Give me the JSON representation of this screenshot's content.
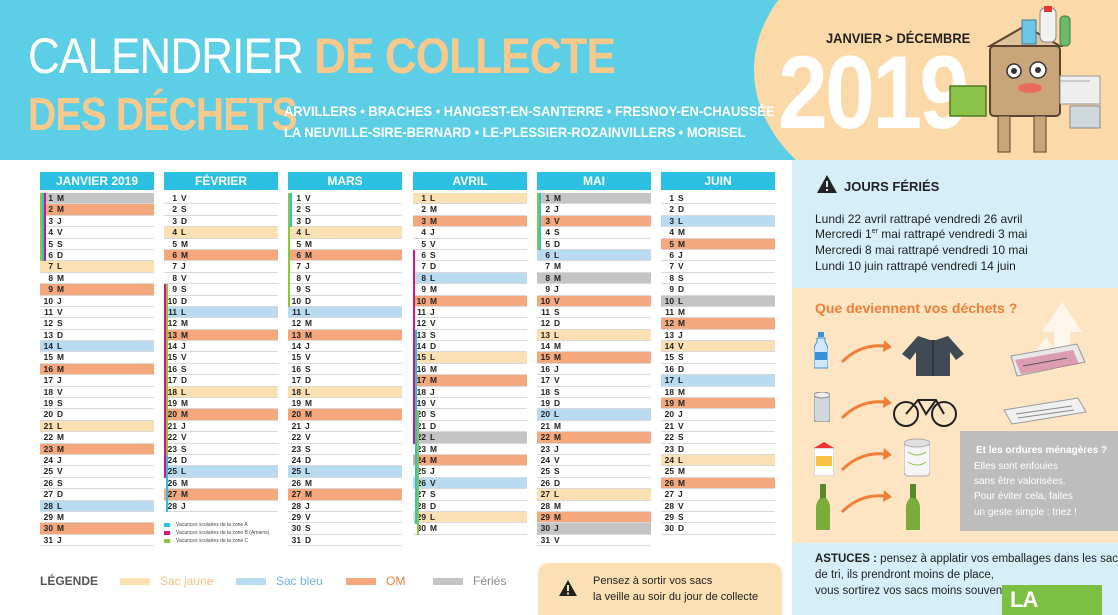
{
  "header": {
    "title_part1": "CALENDRIER ",
    "title_part2": "DE COLLECTE",
    "title_line2": "DES DÉCHETS",
    "communes_line1": "ARVILLERS • BRACHES • HANGEST-EN-SANTERRE • FRESNOY-EN-CHAUSSÉE",
    "communes_line2": "LA NEUVILLE-SIRE-BERNARD • LE-PLESSIER-ROZAINVILLERS • MORISEL",
    "period": "JANVIER > DÉCEMBRE",
    "year": "2019"
  },
  "colors": {
    "header_bg": "#5ccfe6",
    "month_header": "#2bbfe2",
    "sac_jaune": "#fae0b3",
    "sac_bleu": "#b8dbf2",
    "om": "#f5a77e",
    "ferie": "#c4c4c4",
    "zone_a": "#2bbfe2",
    "zone_b": "#d6157f",
    "zone_c": "#8cc63f"
  },
  "calendar": {
    "months": [
      {
        "name": "JANVIER 2019",
        "days": [
          {
            "d": "1",
            "l": "M",
            "c": "ferie"
          },
          {
            "d": "2",
            "l": "M",
            "c": "om"
          },
          {
            "d": "3",
            "l": "J",
            "c": ""
          },
          {
            "d": "4",
            "l": "V",
            "c": ""
          },
          {
            "d": "5",
            "l": "S",
            "c": ""
          },
          {
            "d": "6",
            "l": "D",
            "c": ""
          },
          {
            "d": "7",
            "l": "L",
            "c": "jaune"
          },
          {
            "d": "8",
            "l": "M",
            "c": ""
          },
          {
            "d": "9",
            "l": "M",
            "c": "om"
          },
          {
            "d": "10",
            "l": "J",
            "c": ""
          },
          {
            "d": "11",
            "l": "V",
            "c": ""
          },
          {
            "d": "12",
            "l": "S",
            "c": ""
          },
          {
            "d": "13",
            "l": "D",
            "c": ""
          },
          {
            "d": "14",
            "l": "L",
            "c": "bleu"
          },
          {
            "d": "15",
            "l": "M",
            "c": ""
          },
          {
            "d": "16",
            "l": "M",
            "c": "om"
          },
          {
            "d": "17",
            "l": "J",
            "c": ""
          },
          {
            "d": "18",
            "l": "V",
            "c": ""
          },
          {
            "d": "19",
            "l": "S",
            "c": ""
          },
          {
            "d": "20",
            "l": "D",
            "c": ""
          },
          {
            "d": "21",
            "l": "L",
            "c": "jaune"
          },
          {
            "d": "22",
            "l": "M",
            "c": ""
          },
          {
            "d": "23",
            "l": "M",
            "c": "om"
          },
          {
            "d": "24",
            "l": "J",
            "c": ""
          },
          {
            "d": "25",
            "l": "V",
            "c": ""
          },
          {
            "d": "26",
            "l": "S",
            "c": ""
          },
          {
            "d": "27",
            "l": "D",
            "c": ""
          },
          {
            "d": "28",
            "l": "L",
            "c": "bleu"
          },
          {
            "d": "29",
            "l": "M",
            "c": ""
          },
          {
            "d": "30",
            "l": "M",
            "c": "om"
          },
          {
            "d": "31",
            "l": "J",
            "c": ""
          }
        ]
      },
      {
        "name": "FÉVRIER",
        "days": [
          {
            "d": "1",
            "l": "V",
            "c": ""
          },
          {
            "d": "2",
            "l": "S",
            "c": ""
          },
          {
            "d": "3",
            "l": "D",
            "c": ""
          },
          {
            "d": "4",
            "l": "L",
            "c": "jaune"
          },
          {
            "d": "5",
            "l": "M",
            "c": ""
          },
          {
            "d": "6",
            "l": "M",
            "c": "om"
          },
          {
            "d": "7",
            "l": "J",
            "c": ""
          },
          {
            "d": "8",
            "l": "V",
            "c": ""
          },
          {
            "d": "9",
            "l": "S",
            "c": ""
          },
          {
            "d": "10",
            "l": "D",
            "c": ""
          },
          {
            "d": "11",
            "l": "L",
            "c": "bleu"
          },
          {
            "d": "12",
            "l": "M",
            "c": ""
          },
          {
            "d": "13",
            "l": "M",
            "c": "om"
          },
          {
            "d": "14",
            "l": "J",
            "c": ""
          },
          {
            "d": "15",
            "l": "V",
            "c": ""
          },
          {
            "d": "16",
            "l": "S",
            "c": ""
          },
          {
            "d": "17",
            "l": "D",
            "c": ""
          },
          {
            "d": "18",
            "l": "L",
            "c": "jaune"
          },
          {
            "d": "19",
            "l": "M",
            "c": ""
          },
          {
            "d": "20",
            "l": "M",
            "c": "om"
          },
          {
            "d": "21",
            "l": "J",
            "c": ""
          },
          {
            "d": "22",
            "l": "V",
            "c": ""
          },
          {
            "d": "23",
            "l": "S",
            "c": ""
          },
          {
            "d": "24",
            "l": "D",
            "c": ""
          },
          {
            "d": "25",
            "l": "L",
            "c": "bleu"
          },
          {
            "d": "26",
            "l": "M",
            "c": ""
          },
          {
            "d": "27",
            "l": "M",
            "c": "om"
          },
          {
            "d": "28",
            "l": "J",
            "c": ""
          }
        ]
      },
      {
        "name": "MARS",
        "days": [
          {
            "d": "1",
            "l": "V",
            "c": ""
          },
          {
            "d": "2",
            "l": "S",
            "c": ""
          },
          {
            "d": "3",
            "l": "D",
            "c": ""
          },
          {
            "d": "4",
            "l": "L",
            "c": "jaune"
          },
          {
            "d": "5",
            "l": "M",
            "c": ""
          },
          {
            "d": "6",
            "l": "M",
            "c": "om"
          },
          {
            "d": "7",
            "l": "J",
            "c": ""
          },
          {
            "d": "8",
            "l": "V",
            "c": ""
          },
          {
            "d": "9",
            "l": "S",
            "c": ""
          },
          {
            "d": "10",
            "l": "D",
            "c": ""
          },
          {
            "d": "11",
            "l": "L",
            "c": "bleu"
          },
          {
            "d": "12",
            "l": "M",
            "c": ""
          },
          {
            "d": "13",
            "l": "M",
            "c": "om"
          },
          {
            "d": "14",
            "l": "J",
            "c": ""
          },
          {
            "d": "15",
            "l": "V",
            "c": ""
          },
          {
            "d": "16",
            "l": "S",
            "c": ""
          },
          {
            "d": "17",
            "l": "D",
            "c": ""
          },
          {
            "d": "18",
            "l": "L",
            "c": "jaune"
          },
          {
            "d": "19",
            "l": "M",
            "c": ""
          },
          {
            "d": "20",
            "l": "M",
            "c": "om"
          },
          {
            "d": "21",
            "l": "J",
            "c": ""
          },
          {
            "d": "22",
            "l": "V",
            "c": ""
          },
          {
            "d": "23",
            "l": "S",
            "c": ""
          },
          {
            "d": "24",
            "l": "D",
            "c": ""
          },
          {
            "d": "25",
            "l": "L",
            "c": "bleu"
          },
          {
            "d": "26",
            "l": "M",
            "c": ""
          },
          {
            "d": "27",
            "l": "M",
            "c": "om"
          },
          {
            "d": "28",
            "l": "J",
            "c": ""
          },
          {
            "d": "29",
            "l": "V",
            "c": ""
          },
          {
            "d": "30",
            "l": "S",
            "c": ""
          },
          {
            "d": "31",
            "l": "D",
            "c": ""
          }
        ]
      },
      {
        "name": "AVRIL",
        "days": [
          {
            "d": "1",
            "l": "L",
            "c": "jaune"
          },
          {
            "d": "2",
            "l": "M",
            "c": ""
          },
          {
            "d": "3",
            "l": "M",
            "c": "om"
          },
          {
            "d": "4",
            "l": "J",
            "c": ""
          },
          {
            "d": "5",
            "l": "V",
            "c": ""
          },
          {
            "d": "6",
            "l": "S",
            "c": ""
          },
          {
            "d": "7",
            "l": "D",
            "c": ""
          },
          {
            "d": "8",
            "l": "L",
            "c": "bleu"
          },
          {
            "d": "9",
            "l": "M",
            "c": ""
          },
          {
            "d": "10",
            "l": "M",
            "c": "om"
          },
          {
            "d": "11",
            "l": "J",
            "c": ""
          },
          {
            "d": "12",
            "l": "V",
            "c": ""
          },
          {
            "d": "13",
            "l": "S",
            "c": ""
          },
          {
            "d": "14",
            "l": "D",
            "c": ""
          },
          {
            "d": "15",
            "l": "L",
            "c": "jaune"
          },
          {
            "d": "16",
            "l": "M",
            "c": ""
          },
          {
            "d": "17",
            "l": "M",
            "c": "om"
          },
          {
            "d": "18",
            "l": "J",
            "c": ""
          },
          {
            "d": "19",
            "l": "V",
            "c": ""
          },
          {
            "d": "20",
            "l": "S",
            "c": ""
          },
          {
            "d": "21",
            "l": "D",
            "c": ""
          },
          {
            "d": "22",
            "l": "L",
            "c": "ferie"
          },
          {
            "d": "23",
            "l": "M",
            "c": ""
          },
          {
            "d": "24",
            "l": "M",
            "c": "om"
          },
          {
            "d": "25",
            "l": "J",
            "c": ""
          },
          {
            "d": "26",
            "l": "V",
            "c": "bleu"
          },
          {
            "d": "27",
            "l": "S",
            "c": ""
          },
          {
            "d": "28",
            "l": "D",
            "c": ""
          },
          {
            "d": "29",
            "l": "L",
            "c": "jaune"
          },
          {
            "d": "30",
            "l": "M",
            "c": ""
          }
        ]
      },
      {
        "name": "MAI",
        "days": [
          {
            "d": "1",
            "l": "M",
            "c": "ferie"
          },
          {
            "d": "2",
            "l": "J",
            "c": ""
          },
          {
            "d": "3",
            "l": "V",
            "c": "om"
          },
          {
            "d": "4",
            "l": "S",
            "c": ""
          },
          {
            "d": "5",
            "l": "D",
            "c": ""
          },
          {
            "d": "6",
            "l": "L",
            "c": "bleu"
          },
          {
            "d": "7",
            "l": "M",
            "c": ""
          },
          {
            "d": "8",
            "l": "M",
            "c": "ferie"
          },
          {
            "d": "9",
            "l": "J",
            "c": ""
          },
          {
            "d": "10",
            "l": "V",
            "c": "om"
          },
          {
            "d": "11",
            "l": "S",
            "c": ""
          },
          {
            "d": "12",
            "l": "D",
            "c": ""
          },
          {
            "d": "13",
            "l": "L",
            "c": "jaune"
          },
          {
            "d": "14",
            "l": "M",
            "c": ""
          },
          {
            "d": "15",
            "l": "M",
            "c": "om"
          },
          {
            "d": "16",
            "l": "J",
            "c": ""
          },
          {
            "d": "17",
            "l": "V",
            "c": ""
          },
          {
            "d": "18",
            "l": "S",
            "c": ""
          },
          {
            "d": "19",
            "l": "D",
            "c": ""
          },
          {
            "d": "20",
            "l": "L",
            "c": "bleu"
          },
          {
            "d": "21",
            "l": "M",
            "c": ""
          },
          {
            "d": "22",
            "l": "M",
            "c": "om"
          },
          {
            "d": "23",
            "l": "J",
            "c": ""
          },
          {
            "d": "24",
            "l": "V",
            "c": ""
          },
          {
            "d": "25",
            "l": "S",
            "c": ""
          },
          {
            "d": "26",
            "l": "D",
            "c": ""
          },
          {
            "d": "27",
            "l": "L",
            "c": "jaune"
          },
          {
            "d": "28",
            "l": "M",
            "c": ""
          },
          {
            "d": "29",
            "l": "M",
            "c": "om"
          },
          {
            "d": "30",
            "l": "J",
            "c": "ferie"
          },
          {
            "d": "31",
            "l": "V",
            "c": ""
          }
        ]
      },
      {
        "name": "JUIN",
        "days": [
          {
            "d": "1",
            "l": "S",
            "c": ""
          },
          {
            "d": "2",
            "l": "D",
            "c": ""
          },
          {
            "d": "3",
            "l": "L",
            "c": "bleu"
          },
          {
            "d": "4",
            "l": "M",
            "c": ""
          },
          {
            "d": "5",
            "l": "M",
            "c": "om"
          },
          {
            "d": "6",
            "l": "J",
            "c": ""
          },
          {
            "d": "7",
            "l": "V",
            "c": ""
          },
          {
            "d": "8",
            "l": "S",
            "c": ""
          },
          {
            "d": "9",
            "l": "D",
            "c": ""
          },
          {
            "d": "10",
            "l": "L",
            "c": "ferie"
          },
          {
            "d": "11",
            "l": "M",
            "c": ""
          },
          {
            "d": "12",
            "l": "M",
            "c": "om"
          },
          {
            "d": "13",
            "l": "J",
            "c": ""
          },
          {
            "d": "14",
            "l": "V",
            "c": "jaune"
          },
          {
            "d": "15",
            "l": "S",
            "c": ""
          },
          {
            "d": "16",
            "l": "D",
            "c": ""
          },
          {
            "d": "17",
            "l": "L",
            "c": "bleu"
          },
          {
            "d": "18",
            "l": "M",
            "c": ""
          },
          {
            "d": "19",
            "l": "M",
            "c": "om"
          },
          {
            "d": "20",
            "l": "J",
            "c": ""
          },
          {
            "d": "21",
            "l": "V",
            "c": ""
          },
          {
            "d": "22",
            "l": "S",
            "c": ""
          },
          {
            "d": "23",
            "l": "D",
            "c": ""
          },
          {
            "d": "24",
            "l": "L",
            "c": "jaune"
          },
          {
            "d": "25",
            "l": "M",
            "c": ""
          },
          {
            "d": "26",
            "l": "M",
            "c": "om"
          },
          {
            "d": "27",
            "l": "J",
            "c": ""
          },
          {
            "d": "28",
            "l": "V",
            "c": ""
          },
          {
            "d": "29",
            "l": "S",
            "c": ""
          },
          {
            "d": "30",
            "l": "D",
            "c": ""
          }
        ]
      }
    ]
  },
  "vacances_legend": {
    "zone_a": "Vacances scolaires de la zone A",
    "zone_b": "Vacances scolaires de la zone B (Amiens)",
    "zone_c": "Vacances scolaires de la zone C"
  },
  "legend": {
    "title": "LÉGENDE",
    "sac_jaune": "Sac jaune",
    "sac_bleu": "Sac bleu",
    "om": "OM",
    "feries": "Fériés"
  },
  "reminder": {
    "line1": "Pensez à sortir vos sacs",
    "line2": "la veille au soir du jour de collecte"
  },
  "jours_feries": {
    "title": "JOURS FÉRIÉS",
    "line1": "Lundi 22 avril rattrapé vendredi 26 avril",
    "line2_pre": "Mercredi 1",
    "line2_sup": "er",
    "line2_post": " mai rattrapé vendredi 3 mai",
    "line3": "Mercredi 8 mai rattrapé vendredi 10 mai",
    "line4": "Lundi 10 juin rattrapé vendredi 14 juin"
  },
  "devenir": {
    "title": "Que deviennent vos déchets ?",
    "icons": [
      "bottle-icon",
      "fleece-jacket-icon",
      "newspapers-icon",
      "can-icon",
      "bicycle-icon",
      "paper-stack-icon",
      "carton-icon",
      "paper-roll-icon",
      "glass-bottle-icon",
      "recycled-bottle-icon",
      "recycle-symbol-icon"
    ]
  },
  "ordures": {
    "title": "Et les ordures ménagères ?",
    "line1": "Elles sont enfouies",
    "line2": "sans être valorisées.",
    "line3": "Pour éviter cela, faites",
    "line4": "un geste simple : triez !"
  },
  "astuces": {
    "label": "ASTUCES :",
    "line1": " pensez à applatir vos emballages dans les sacs",
    "line2": "de tri, ils prendront moins de place,",
    "line3": "vous sortirez vos sacs moins souvent."
  },
  "guide": {
    "text": "LA COLLECTE"
  }
}
